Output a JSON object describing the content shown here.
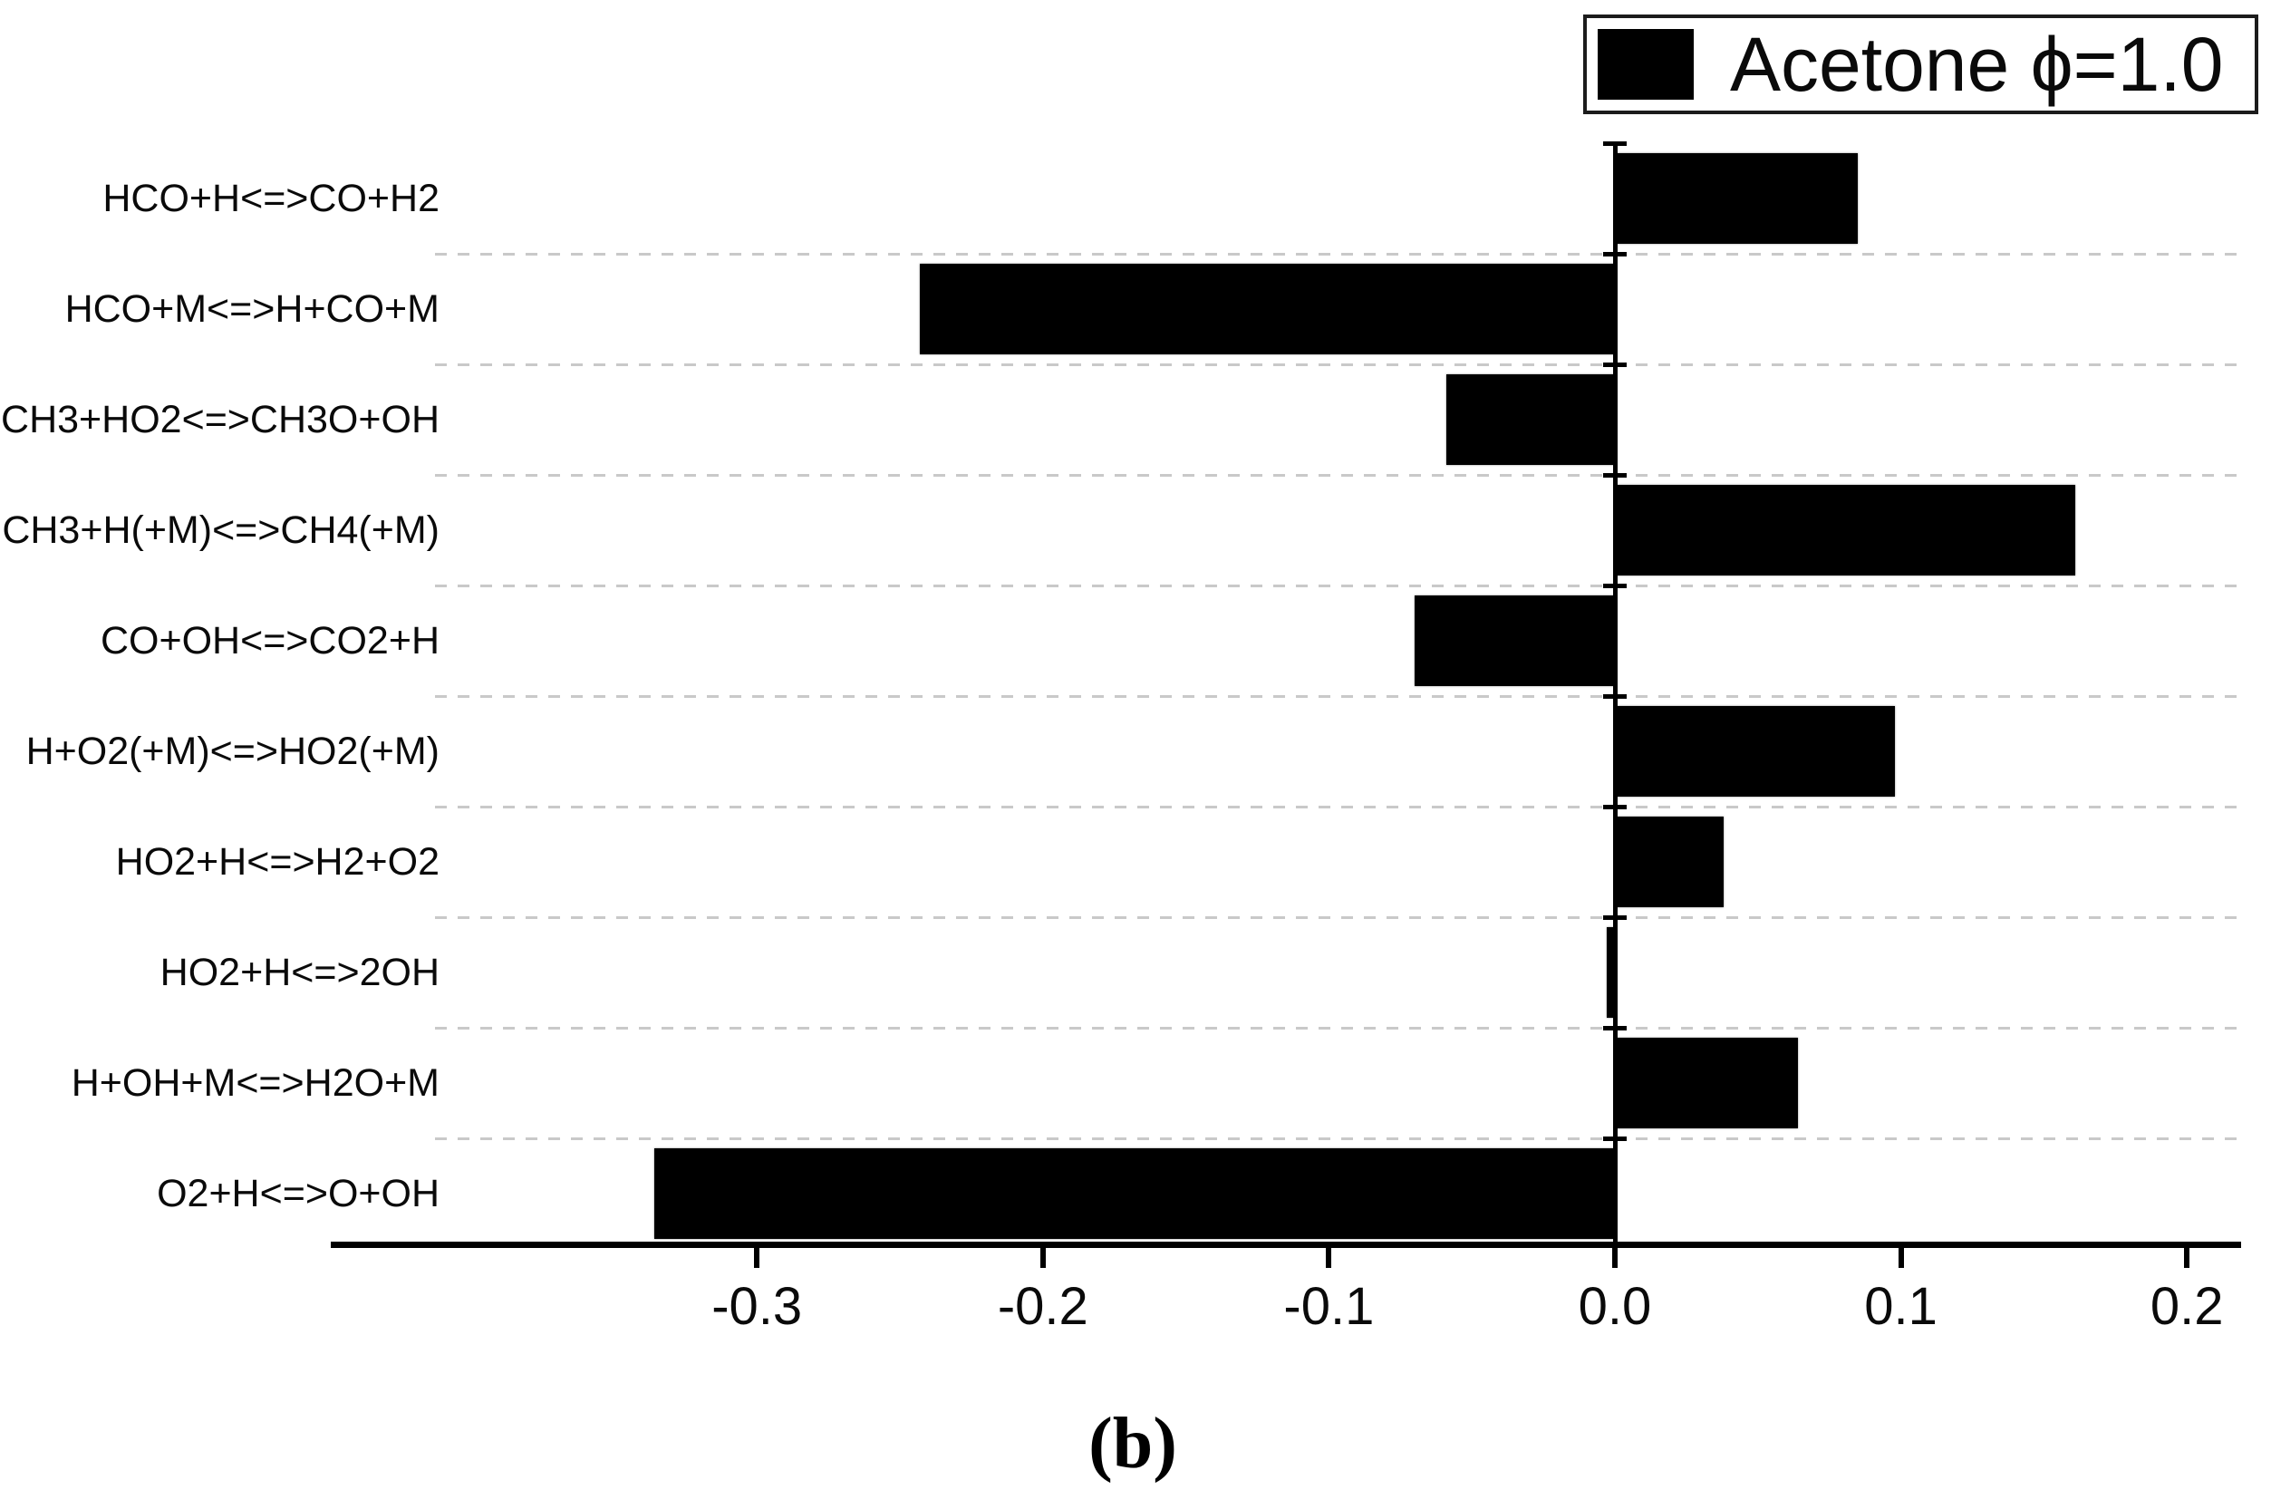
{
  "figure": {
    "caption": "(b)"
  },
  "legend": {
    "label": "Acetone ϕ=1.0",
    "swatch_color": "#000000"
  },
  "chart_data": {
    "type": "bar",
    "orientation": "horizontal",
    "title": "",
    "xlabel": "",
    "ylabel": "",
    "legend_entries": [
      "Acetone ϕ=1.0"
    ],
    "legend_position": "top-right",
    "categories": [
      "HCO+H<=>CO+H2",
      "HCO+M<=>H+CO+M",
      "CH3+HO2<=>CH3O+OH",
      "CH3+H(+M)<=>CH4(+M)",
      "CO+OH<=>CO2+H",
      "H+O2(+M)<=>HO2(+M)",
      "HO2+H<=>H2+O2",
      "HO2+H<=>2OH",
      "H+OH+M<=>H2O+M",
      "O2+H<=>O+OH"
    ],
    "values": [
      0.085,
      -0.243,
      -0.059,
      0.161,
      -0.07,
      0.098,
      0.038,
      -0.003,
      0.064,
      -0.336
    ],
    "xlim": [
      -0.449,
      0.219
    ],
    "xtick_labels": [
      "-0.3",
      "-0.2",
      "-0.1",
      "0.0",
      "0.1",
      "0.2"
    ],
    "xtick_values": [
      -0.3,
      -0.2,
      -0.1,
      0.0,
      0.1,
      0.2
    ],
    "grid": "dashed-row-separators",
    "bar_color": "#000000",
    "background_color": "#ffffff"
  }
}
